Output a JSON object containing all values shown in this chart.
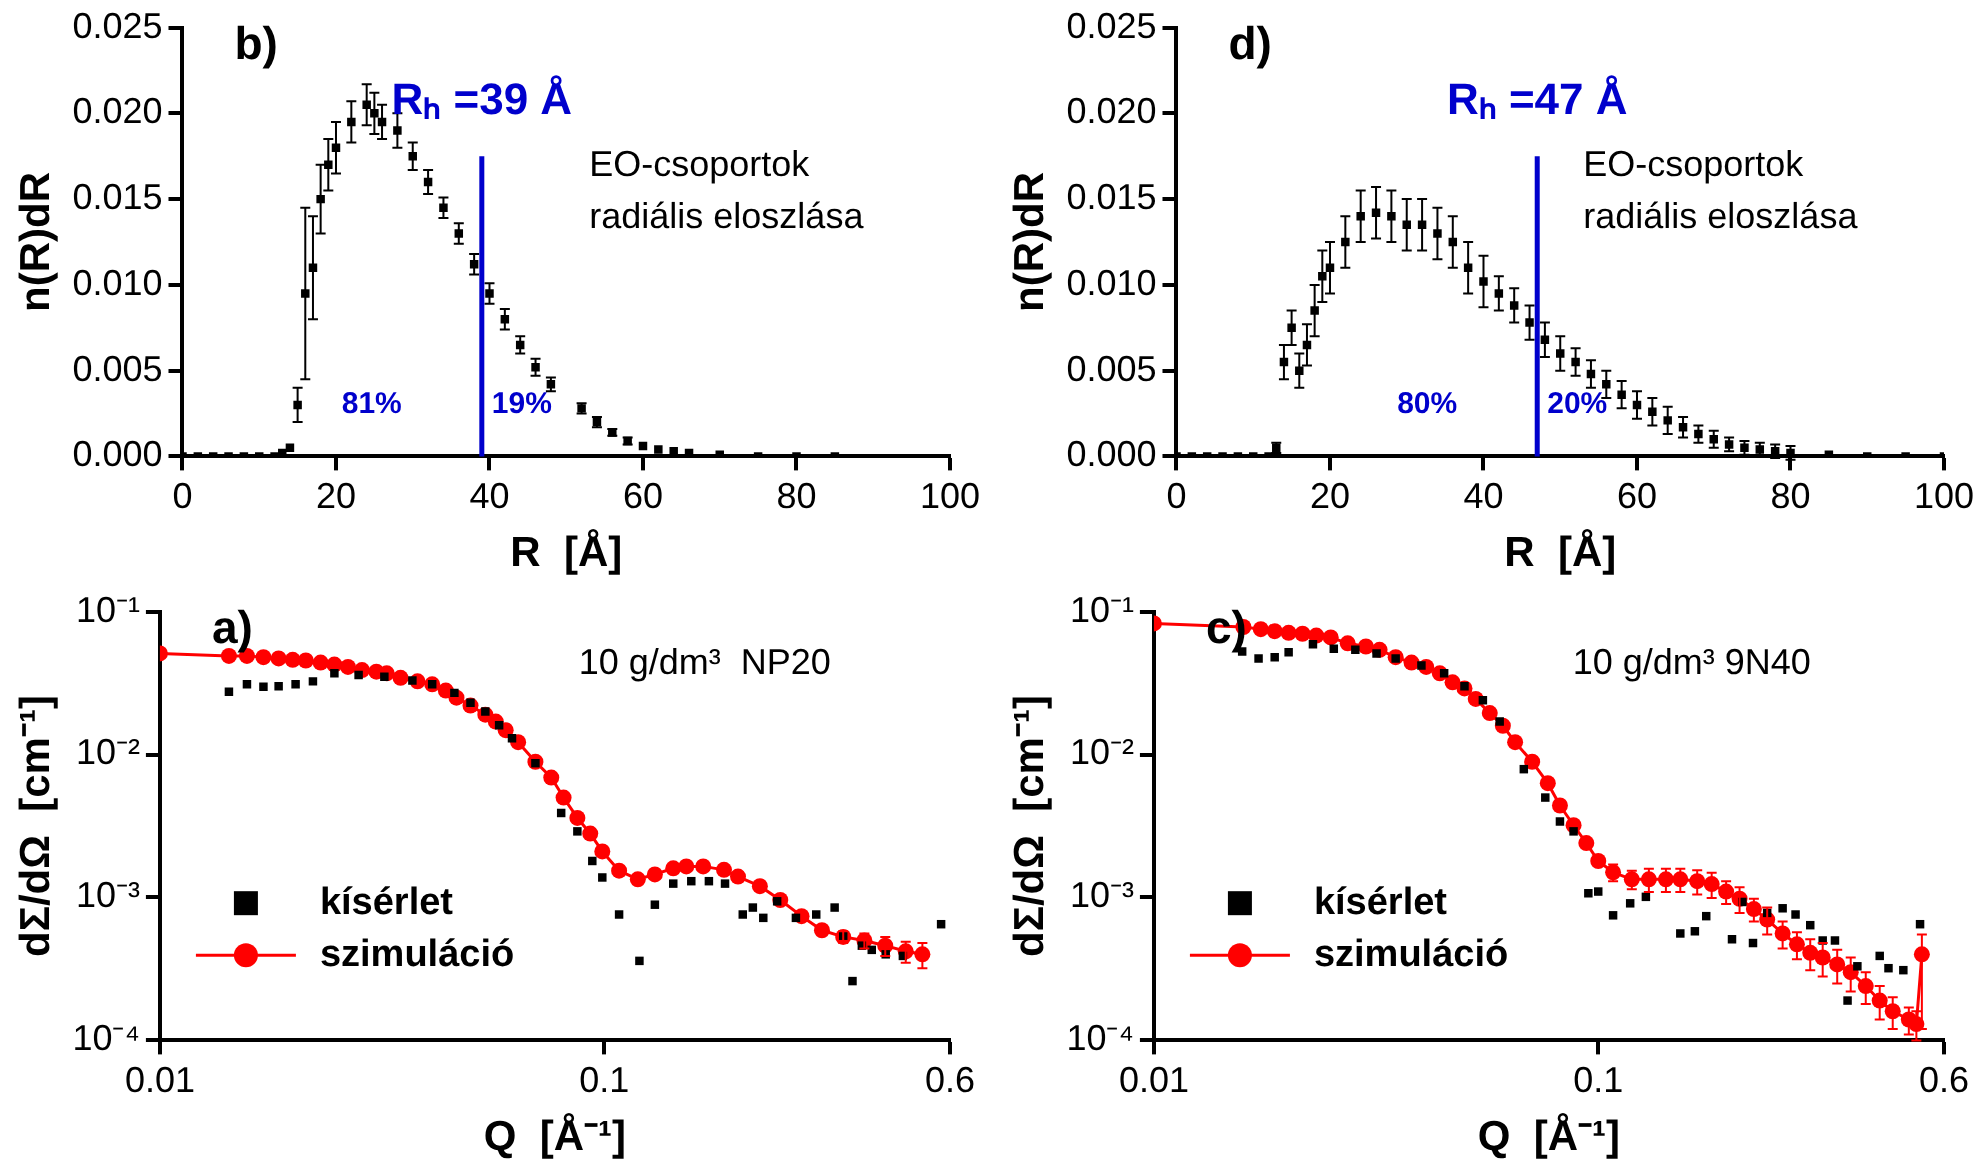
{
  "chart_data": [
    {
      "type": "scatter",
      "ylabel": "n(R)dR",
      "xlabel": "R  [Å]",
      "annotations": [
        "b)",
        "EO-csoportok",
        "radiális eloszlása",
        "81%",
        "19%"
      ],
      "x": [
        0,
        2,
        4,
        6,
        8,
        10,
        12,
        13,
        14,
        15,
        16,
        17,
        18,
        19,
        20,
        22,
        24,
        25,
        26,
        28,
        30,
        32,
        34,
        36,
        38,
        40,
        42,
        44,
        46,
        48,
        52,
        54,
        56,
        58,
        60,
        62,
        64,
        66,
        70,
        75,
        80,
        85
      ],
      "values": [
        0,
        0,
        0,
        0,
        0,
        0,
        0,
        0.0002,
        0.0005,
        0.003,
        0.0095,
        0.011,
        0.015,
        0.017,
        0.018,
        0.0195,
        0.0205,
        0.02,
        0.0195,
        0.019,
        0.0175,
        0.016,
        0.0145,
        0.013,
        0.0112,
        0.0095,
        0.008,
        0.0065,
        0.0052,
        0.0042,
        0.0028,
        0.002,
        0.0014,
        0.0009,
        0.0006,
        0.0004,
        0.0003,
        0.0002,
        0.0001,
        0,
        0,
        0
      ],
      "errors": [
        null,
        null,
        null,
        null,
        null,
        null,
        null,
        null,
        null,
        0.001,
        0.005,
        0.003,
        0.002,
        0.0015,
        0.0015,
        0.0012,
        0.0012,
        0.0012,
        0.001,
        0.001,
        0.0008,
        0.0007,
        0.0006,
        0.0006,
        0.0006,
        0.0006,
        0.0006,
        0.0005,
        0.0005,
        0.0004,
        0.0003,
        0.0003,
        0.0002,
        0.0002,
        null,
        null,
        null,
        null,
        null,
        null,
        null,
        null
      ],
      "color": "#000000",
      "marker": "square",
      "xlim": [
        0,
        100
      ],
      "xticks": [
        0,
        20,
        40,
        60,
        80,
        100
      ],
      "ylim": [
        0,
        0.025
      ],
      "yticks": [
        {
          "value": 0,
          "label": "0.000"
        },
        {
          "value": 0.005,
          "label": "0.005"
        },
        {
          "value": 0.01,
          "label": "0.010"
        },
        {
          "value": 0.015,
          "label": "0.015"
        },
        {
          "value": 0.02,
          "label": "0.020"
        },
        {
          "value": 0.025,
          "label": "0.025"
        }
      ],
      "ref_lines": [
        {
          "axis": "x",
          "value": 39,
          "label": "Rₕ =39 Å",
          "color": "#0000cc"
        }
      ],
      "grid": false,
      "legend": false
    },
    {
      "type": "scatter",
      "ylabel": "n(R)dR",
      "xlabel": "R  [Å]",
      "annotations": [
        "d)",
        "EO-csoportok",
        "radiális eloszlása",
        "80%",
        "20%"
      ],
      "x": [
        0,
        2,
        4,
        6,
        8,
        10,
        12,
        13,
        14,
        15,
        16,
        17,
        18,
        19,
        20,
        22,
        24,
        26,
        28,
        30,
        32,
        34,
        36,
        38,
        40,
        42,
        44,
        46,
        48,
        50,
        52,
        54,
        56,
        58,
        60,
        62,
        64,
        66,
        68,
        70,
        72,
        74,
        76,
        78,
        80,
        85,
        90,
        95,
        100
      ],
      "values": [
        0,
        0,
        0,
        0,
        0,
        0,
        0,
        0.0005,
        0.0055,
        0.0075,
        0.005,
        0.0065,
        0.0085,
        0.0105,
        0.011,
        0.0125,
        0.014,
        0.0142,
        0.014,
        0.0135,
        0.0135,
        0.013,
        0.0125,
        0.011,
        0.0102,
        0.0095,
        0.0088,
        0.0078,
        0.0068,
        0.006,
        0.0055,
        0.0048,
        0.0042,
        0.0036,
        0.003,
        0.0026,
        0.0021,
        0.0017,
        0.0013,
        0.001,
        0.0007,
        0.0005,
        0.0004,
        0.0003,
        0.0002,
        0.0001,
        0,
        0,
        0
      ],
      "errors": [
        null,
        null,
        null,
        null,
        null,
        null,
        null,
        0.0003,
        0.001,
        0.001,
        0.001,
        0.0012,
        0.0015,
        0.0015,
        0.0015,
        0.0015,
        0.0015,
        0.0015,
        0.0015,
        0.0015,
        0.0015,
        0.0015,
        0.0015,
        0.0015,
        0.0015,
        0.001,
        0.001,
        0.001,
        0.001,
        0.001,
        0.0008,
        0.0008,
        0.0008,
        0.0008,
        0.0008,
        0.0008,
        0.0008,
        0.0006,
        0.0005,
        0.0005,
        0.0004,
        0.0004,
        0.0004,
        0.0004,
        0.0004,
        null,
        null,
        null,
        null
      ],
      "color": "#000000",
      "marker": "square",
      "xlim": [
        0,
        100
      ],
      "xticks": [
        0,
        20,
        40,
        60,
        80,
        100
      ],
      "ylim": [
        0,
        0.025
      ],
      "yticks": [
        {
          "value": 0,
          "label": "0.000"
        },
        {
          "value": 0.005,
          "label": "0.005"
        },
        {
          "value": 0.01,
          "label": "0.010"
        },
        {
          "value": 0.015,
          "label": "0.015"
        },
        {
          "value": 0.02,
          "label": "0.020"
        },
        {
          "value": 0.025,
          "label": "0.025"
        }
      ],
      "ref_lines": [
        {
          "axis": "x",
          "value": 47,
          "label": "Rₕ =47 Å",
          "color": "#0000cc"
        }
      ],
      "grid": false,
      "legend": false
    },
    {
      "type": "scatter",
      "ylabel": "dΣ/dΩ  [cm⁻¹]",
      "xlabel": "Q  [Å⁻¹]",
      "annotations": [
        "a)",
        "10 g/dm³  NP20"
      ],
      "log": "xy",
      "grid": false,
      "legend": "bottom left",
      "xlim": [
        0.01,
        0.6
      ],
      "xticks": [
        0.01,
        0.1,
        0.6
      ],
      "ylim": [
        0.0001,
        0.1
      ],
      "yticks": [
        {
          "value": 0.0001,
          "label": "10⁻⁴"
        },
        {
          "value": 0.001,
          "label": "10⁻³"
        },
        {
          "value": 0.01,
          "label": "10⁻²"
        },
        {
          "value": 0.1,
          "label": "10⁻¹"
        }
      ],
      "series": [
        {
          "name": "kísérlet",
          "type": "scatter",
          "marker": "square",
          "color": "#000000",
          "x": [
            0.0143,
            0.0157,
            0.0171,
            0.0185,
            0.0202,
            0.0221,
            0.0247,
            0.028,
            0.032,
            0.037,
            0.041,
            0.046,
            0.05,
            0.054,
            0.058,
            0.062,
            0.07,
            0.08,
            0.087,
            0.094,
            0.099,
            0.108,
            0.12,
            0.13,
            0.143,
            0.157,
            0.172,
            0.187,
            0.205,
            0.216,
            0.228,
            0.245,
            0.27,
            0.3,
            0.33,
            0.345,
            0.362,
            0.38,
            0.4,
            0.43,
            0.47,
            0.573
          ],
          "values": [
            0.0275,
            0.031,
            0.0298,
            0.03,
            0.031,
            0.0325,
            0.037,
            0.036,
            0.035,
            0.033,
            0.031,
            0.027,
            0.023,
            0.02,
            0.016,
            0.013,
            0.0087,
            0.0039,
            0.0029,
            0.0018,
            0.00138,
            0.00076,
            0.00036,
            0.00089,
            0.00125,
            0.0013,
            0.0013,
            0.00125,
            0.00076,
            0.00085,
            0.00072,
            0.00094,
            0.00072,
            0.00076,
            0.00085,
            0.00054,
            0.00026,
            0.00046,
            0.00043,
            0.0004,
            0.00039,
            0.00065
          ]
        },
        {
          "name": "szimuláció",
          "type": "line",
          "marker": "circle",
          "line_style": "solid",
          "color": "#ff0000",
          "x": [
            0.01,
            0.0143,
            0.0157,
            0.0171,
            0.0185,
            0.0199,
            0.0213,
            0.023,
            0.0247,
            0.0265,
            0.0285,
            0.0307,
            0.0324,
            0.0348,
            0.038,
            0.041,
            0.044,
            0.0465,
            0.05,
            0.054,
            0.057,
            0.06,
            0.064,
            0.07,
            0.076,
            0.081,
            0.087,
            0.093,
            0.099,
            0.108,
            0.119,
            0.13,
            0.143,
            0.153,
            0.167,
            0.186,
            0.2,
            0.224,
            0.249,
            0.278,
            0.309,
            0.345,
            0.385,
            0.429,
            0.477,
            0.52
          ],
          "values": [
            0.051,
            0.049,
            0.049,
            0.048,
            0.047,
            0.046,
            0.0455,
            0.044,
            0.0426,
            0.041,
            0.039,
            0.038,
            0.037,
            0.0344,
            0.0325,
            0.031,
            0.028,
            0.025,
            0.022,
            0.019,
            0.017,
            0.0148,
            0.0122,
            0.0089,
            0.0069,
            0.005,
            0.0036,
            0.0028,
            0.0021,
            0.00154,
            0.00134,
            0.00145,
            0.0016,
            0.00165,
            0.00165,
            0.00156,
            0.0014,
            0.0012,
            0.00096,
            0.00074,
            0.00059,
            0.00053,
            0.0005,
            0.00046,
            0.00042,
            0.0004
          ],
          "errors": [
            null,
            null,
            null,
            null,
            null,
            null,
            null,
            null,
            null,
            null,
            null,
            null,
            null,
            null,
            null,
            null,
            null,
            null,
            null,
            null,
            null,
            null,
            null,
            null,
            null,
            null,
            null,
            null,
            null,
            null,
            null,
            null,
            null,
            null,
            null,
            null,
            null,
            null,
            null,
            null,
            null,
            5e-05,
            6e-05,
            7e-05,
            7e-05,
            8e-05
          ]
        }
      ]
    },
    {
      "type": "scatter",
      "ylabel": "dΣ/dΩ  [cm⁻¹]",
      "xlabel": "Q  [Å⁻¹]",
      "annotations": [
        "c)",
        "10 g/dm³ 9N40"
      ],
      "log": "xy",
      "grid": false,
      "legend": "bottom left",
      "xlim": [
        0.01,
        0.6
      ],
      "xticks": [
        0.01,
        0.1,
        0.6
      ],
      "ylim": [
        0.0001,
        0.1
      ],
      "yticks": [
        {
          "value": 0.0001,
          "label": "10⁻⁴"
        },
        {
          "value": 0.001,
          "label": "10⁻³"
        },
        {
          "value": 0.01,
          "label": "10⁻²"
        },
        {
          "value": 0.1,
          "label": "10⁻¹"
        }
      ],
      "series": [
        {
          "name": "kísérlet",
          "type": "scatter",
          "marker": "square",
          "color": "#000000",
          "x": [
            0.0158,
            0.0172,
            0.0187,
            0.0201,
            0.0228,
            0.0254,
            0.0284,
            0.0317,
            0.035,
            0.04,
            0.045,
            0.05,
            0.055,
            0.06,
            0.068,
            0.076,
            0.082,
            0.088,
            0.095,
            0.1,
            0.108,
            0.118,
            0.128,
            0.153,
            0.165,
            0.175,
            0.2,
            0.211,
            0.223,
            0.24,
            0.26,
            0.278,
            0.3,
            0.32,
            0.341,
            0.364,
            0.383,
            0.43,
            0.45,
            0.486,
            0.53
          ],
          "values": [
            0.0526,
            0.047,
            0.048,
            0.052,
            0.059,
            0.055,
            0.054,
            0.051,
            0.047,
            0.042,
            0.037,
            0.03,
            0.024,
            0.017,
            0.0079,
            0.005,
            0.0034,
            0.0029,
            0.00107,
            0.0011,
            0.00075,
            0.00091,
            0.00101,
            0.00056,
            0.00058,
            0.00074,
            0.00051,
            0.00093,
            0.00048,
            0.00078,
            0.00084,
            0.00076,
            0.00064,
            0.0005,
            0.0005,
            0.00019,
            0.00033,
            0.00039,
            0.00032,
            0.00031,
            0.00065
          ]
        },
        {
          "name": "szimuláció",
          "type": "line",
          "marker": "circle",
          "line_style": "solid",
          "color": "#ff0000",
          "x": [
            0.01,
            0.0159,
            0.0174,
            0.0187,
            0.0201,
            0.0216,
            0.0232,
            0.025,
            0.0273,
            0.03,
            0.0322,
            0.035,
            0.038,
            0.041,
            0.044,
            0.047,
            0.05,
            0.053,
            0.057,
            0.061,
            0.065,
            0.071,
            0.077,
            0.082,
            0.088,
            0.094,
            0.1,
            0.108,
            0.119,
            0.13,
            0.142,
            0.153,
            0.167,
            0.18,
            0.194,
            0.208,
            0.224,
            0.24,
            0.26,
            0.28,
            0.3,
            0.32,
            0.345,
            0.37,
            0.4,
            0.43,
            0.46,
            0.5,
            0.52,
            0.535
          ],
          "values": [
            0.0826,
            0.078,
            0.0754,
            0.073,
            0.071,
            0.07,
            0.068,
            0.066,
            0.06,
            0.057,
            0.054,
            0.048,
            0.044,
            0.041,
            0.037,
            0.032,
            0.029,
            0.0245,
            0.0195,
            0.0159,
            0.0122,
            0.0089,
            0.0063,
            0.0044,
            0.0032,
            0.0024,
            0.0018,
            0.0015,
            0.00134,
            0.00134,
            0.00134,
            0.00134,
            0.0013,
            0.00124,
            0.0011,
            0.00098,
            0.00083,
            0.0007,
            0.00056,
            0.00047,
            0.00041,
            0.00038,
            0.00034,
            0.0003,
            0.00024,
            0.00019,
            0.00016,
            0.00014,
            0.00013,
            0.0004
          ],
          "errors": [
            null,
            null,
            null,
            null,
            null,
            null,
            null,
            null,
            null,
            null,
            null,
            null,
            null,
            null,
            null,
            null,
            null,
            null,
            null,
            null,
            null,
            null,
            null,
            null,
            null,
            null,
            null,
            0.0002,
            0.0002,
            0.00025,
            0.00025,
            0.00025,
            0.00025,
            0.00025,
            0.0002,
            0.0002,
            0.00015,
            0.00015,
            0.00012,
            0.0001,
            0.0001,
            0.0001,
            9e-05,
            8e-05,
            6e-05,
            5e-05,
            4e-05,
            3e-05,
            3e-05,
            [
              0.00012,
              0.00055
            ]
          ]
        }
      ]
    }
  ]
}
